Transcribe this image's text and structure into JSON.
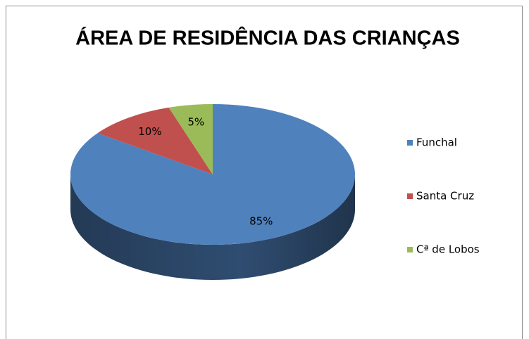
{
  "chart_data": {
    "type": "pie3d",
    "title": "ÁREA DE RESIDÊNCIA DAS CRIANÇAS",
    "series": [
      {
        "name": "Funchal",
        "color": "#4f81bd",
        "value": 85,
        "value_label": "85%"
      },
      {
        "name": "Santa Cruz",
        "color": "#c0504d",
        "value": 10,
        "value_label": "10%"
      },
      {
        "name": "Cª de Lobos",
        "color": "#9bbb59",
        "value": 5,
        "value_label": "5%"
      }
    ],
    "legend": "right"
  }
}
